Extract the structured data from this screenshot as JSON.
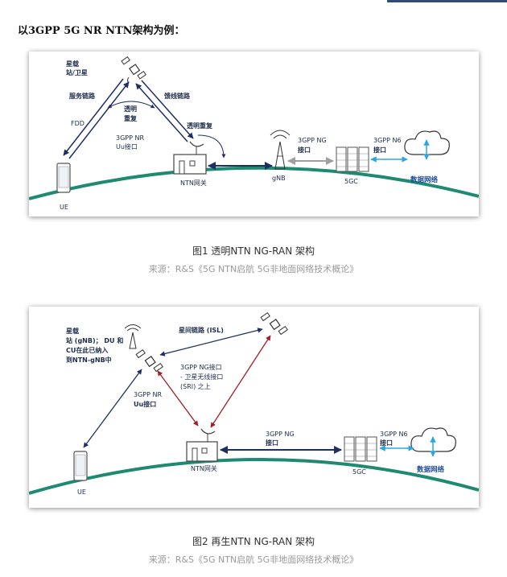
{
  "heading": "以3GPP 5G NR NTN架构为例：",
  "figure1": {
    "caption": "图1 透明NTN NG-RAN 架构",
    "source": "来源：R&S《5G NTN启航 5G非地面网络技术概论》",
    "labels": {
      "sat_line1": "星载",
      "sat_line2": "站/卫星",
      "service_link": "服务链路",
      "feeder_link": "馈线链路",
      "transparent_line1": "透明",
      "transparent_line2": "重复",
      "transparent_repeat": "透明重复",
      "fdd": "FDD",
      "nr_uu_line1": "3GPP NR",
      "nr_uu_line2": "Uu接口",
      "ng_line1": "3GPP NG",
      "ng_line2": "接口",
      "n6_line1": "3GPP N6",
      "n6_line2": "接口",
      "data_network": "数据网络",
      "ue": "UE",
      "ntn_gateway": "NTN网关",
      "gnb": "gNB",
      "core": "5GC"
    }
  },
  "figure2": {
    "caption": "图2 再生NTN NG-RAN 架构",
    "source": "来源：R&S《5G NTN启航 5G非地面网络技术概论》",
    "labels": {
      "sat_line1": "星载",
      "sat_line2": "站 (gNB)； DU 和",
      "sat_line3": "CU在此已纳入",
      "sat_line4": "到NTN-gNB中",
      "isl": "星间链路 (ISL)",
      "ng_sri_line1": "3GPP NG接口",
      "ng_sri_line2": "- 卫星无线接口",
      "ng_sri_line3": "(SRI) 之上",
      "nr_uu_line1": "3GPP NR",
      "nr_uu_line2": "Uu接口",
      "ng_line1": "3GPP NG",
      "ng_line2": "接口",
      "n6_line1": "3GPP N6",
      "n6_line2": "接口",
      "data_network": "数据网络",
      "ue": "UE",
      "ntn_gateway": "NTN网关",
      "core": "5GC"
    }
  },
  "colors": {
    "ground": "#1f8a72",
    "link_navy": "#1f2f63",
    "link_gray": "#a0a0a0",
    "link_cyan": "#2aa7de",
    "link_red": "#a01e24",
    "accent": "#1f4e9a"
  }
}
